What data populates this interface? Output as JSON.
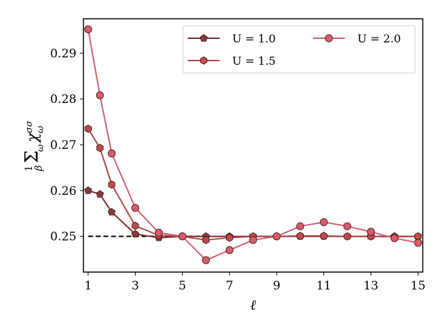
{
  "chart_data": {
    "type": "line",
    "xlabel": "ℓ",
    "ylabel": "(1/β) Σω χωσσ",
    "xlim": [
      0.8,
      15.2
    ],
    "ylim": [
      0.2422,
      0.2975
    ],
    "xticks": [
      1,
      3,
      5,
      7,
      9,
      11,
      13,
      15
    ],
    "yticks": [
      0.25,
      0.26,
      0.27,
      0.28,
      0.29
    ],
    "ytick_labels": [
      "0.25",
      "0.26",
      "0.27",
      "0.28",
      "0.29"
    ],
    "reference_line": {
      "y": 0.25,
      "style": "dashed",
      "x_range": [
        1,
        6
      ]
    },
    "legend": {
      "position": "top-right",
      "columns": 2
    },
    "series": [
      {
        "name": "U = 1.0",
        "marker": "pentagon",
        "color": "#7a2e2e",
        "marker_fill": "#8a3a3a",
        "x": [
          1,
          1.5,
          2,
          3,
          4,
          5,
          6,
          7,
          8,
          9,
          10,
          11,
          12,
          13,
          14,
          15
        ],
        "y": [
          0.26,
          0.2592,
          0.2553,
          0.2505,
          0.2497,
          0.25,
          0.25,
          0.25,
          0.25,
          0.25,
          0.25,
          0.25,
          0.25,
          0.25,
          0.25,
          0.25
        ]
      },
      {
        "name": "U = 1.5",
        "marker": "hexagon",
        "color": "#b04545",
        "marker_fill": "#c04a4a",
        "x": [
          1,
          1.5,
          2,
          3,
          4,
          5,
          6,
          7,
          8,
          9,
          10,
          11,
          12,
          13,
          14,
          15
        ],
        "y": [
          0.2735,
          0.2693,
          0.2613,
          0.2523,
          0.2502,
          0.25,
          0.2492,
          0.2497,
          0.25,
          0.25,
          0.2501,
          0.2501,
          0.25,
          0.25,
          0.2499,
          0.25
        ]
      },
      {
        "name": "U = 2.0",
        "marker": "circle",
        "color": "#d06070",
        "marker_fill": "#d85c6a",
        "x": [
          1,
          1.5,
          2,
          3,
          4,
          5,
          6,
          7,
          8,
          9,
          10,
          11,
          12,
          13,
          14,
          15
        ],
        "y": [
          0.2952,
          0.2808,
          0.2681,
          0.2562,
          0.2508,
          0.25,
          0.2448,
          0.247,
          0.2492,
          0.25,
          0.2522,
          0.2531,
          0.2522,
          0.251,
          0.2496,
          0.2486
        ]
      }
    ]
  }
}
